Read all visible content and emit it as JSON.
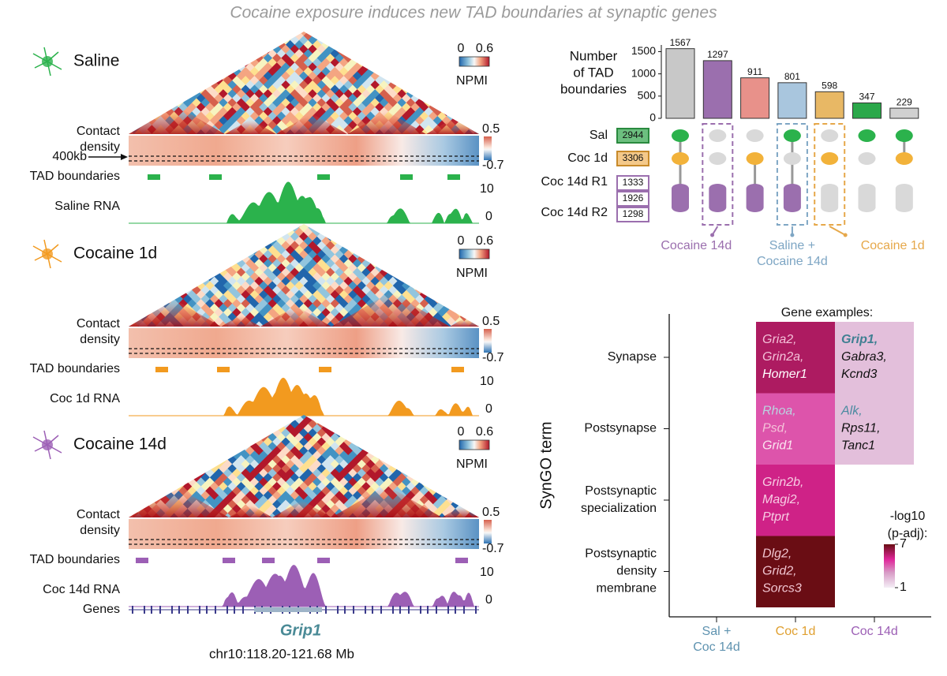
{
  "title": "Cocaine exposure induces new TAD boundaries at synaptic genes",
  "tracks": {
    "panels": [
      {
        "condition": "Saline",
        "color": "#2bb24c",
        "rna_label": "Saline RNA"
      },
      {
        "condition": "Cocaine 1d",
        "color": "#f29a1f",
        "rna_label": "Coc 1d RNA"
      },
      {
        "condition": "Cocaine 14d",
        "color": "#9c5fb5",
        "rna_label": "Coc 14d RNA"
      }
    ],
    "hic_scale": [
      0,
      0.6
    ],
    "hic_scale_label": "NPMI",
    "density_label": [
      "Contact",
      "density"
    ],
    "density_scale": [
      0.5,
      -0.7
    ],
    "distance_marker": "400kb",
    "tad_label": "TAD boundaries",
    "rna_scale": [
      10,
      0
    ],
    "genes_label": "Genes",
    "gene_name": "Grip1",
    "region": "chr10:118.20-121.68 Mb"
  },
  "chart_data": [
    {
      "type": "upset",
      "ylabel": [
        "Number",
        "of TAD",
        "boundaries"
      ],
      "values": [
        1567,
        1297,
        911,
        801,
        598,
        347,
        229
      ],
      "colors": [
        "#c8c8c8",
        "#9b6fae",
        "#e8918a",
        "#a9c6de",
        "#e8b865",
        "#2ba84a",
        "#d0d0d0"
      ],
      "ylim": [
        0,
        1650
      ],
      "yticks": [
        0,
        500,
        1000,
        1500
      ],
      "sets": [
        {
          "name": "Sal",
          "size": 2944,
          "color": "#2bb24c"
        },
        {
          "name": "Coc 1d",
          "size": 3306,
          "color": "#f2b23a"
        },
        {
          "name": "Coc 14d R1",
          "size": 1333,
          "color": "#9b6fae"
        },
        {
          "name": "Coc 14d R2",
          "size": 1298,
          "color": "#9b6fae"
        }
      ],
      "replicate_overlap": 1926,
      "membership": [
        [
          1,
          1,
          1
        ],
        [
          0,
          0,
          1
        ],
        [
          0,
          1,
          1
        ],
        [
          1,
          0,
          1
        ],
        [
          0,
          1,
          0
        ],
        [
          1,
          0,
          0
        ],
        [
          1,
          1,
          0
        ]
      ],
      "highlights": [
        null,
        [
          "Cocaine 14d"
        ],
        null,
        [
          "Saline +",
          "Cocaine 14d"
        ],
        [
          "Cocaine 1d"
        ],
        null,
        null
      ],
      "highlight_colors": [
        null,
        "#9b6fae",
        null,
        "#7ea6c4",
        "#e6a84a",
        null,
        null
      ]
    },
    {
      "type": "heatmap",
      "title": "Gene examples:",
      "ylabel": "SynGO term",
      "rows": [
        [
          "Synapse"
        ],
        [
          "Postsynapse"
        ],
        [
          "Postsynaptic",
          "specialization"
        ],
        [
          "Postsynaptic",
          "density",
          "membrane"
        ]
      ],
      "columns": [
        {
          "lines": [
            "Sal +",
            "Coc 14d"
          ],
          "color": "#5f93b0"
        },
        {
          "lines": [
            "Coc 1d"
          ],
          "color": "#e0a030"
        },
        {
          "lines": [
            "Coc 14d"
          ],
          "color": "#9c5fb5"
        }
      ],
      "values": [
        [
          null,
          5.8,
          2.2
        ],
        [
          null,
          4.2,
          2.2
        ],
        [
          null,
          5.2,
          null
        ],
        [
          null,
          7,
          null
        ]
      ],
      "genes": [
        [
          null,
          [
            {
              "text": "Gria2,",
              "color": "#f4c0d8"
            },
            {
              "text": "Grin2a,",
              "color": "#f4c0d8"
            },
            {
              "text": "Homer1",
              "color": "#ffffff"
            }
          ],
          [
            {
              "text": "Grip1,",
              "color": "#3f7f92",
              "weight": "bold"
            },
            {
              "text": "Gabra3,",
              "color": "#111111"
            },
            {
              "text": "Kcnd3",
              "color": "#111111"
            }
          ]
        ],
        [
          null,
          [
            {
              "text": "Rhoa,",
              "color": "#b9d3e0"
            },
            {
              "text": "Psd,",
              "color": "#f4c0d8"
            },
            {
              "text": "Grid1",
              "color": "#fbe4ef"
            }
          ],
          [
            {
              "text": "Alk,",
              "color": "#4a8aa0"
            },
            {
              "text": "Rps11,",
              "color": "#111111"
            },
            {
              "text": "Tanc1",
              "color": "#111111"
            }
          ]
        ],
        [
          null,
          [
            {
              "text": "Grin2b,",
              "color": "#f7cde3"
            },
            {
              "text": "Magi2,",
              "color": "#f7cde3"
            },
            {
              "text": "Ptprt",
              "color": "#f7cde3"
            }
          ],
          null
        ],
        [
          null,
          [
            {
              "text": "Dlg2,",
              "color": "#f0c4d0"
            },
            {
              "text": "Grid2,",
              "color": "#f0c4d0"
            },
            {
              "text": "Sorcs3",
              "color": "#f0c4d0"
            }
          ],
          null
        ]
      ],
      "colorbar_label": [
        "-log10",
        "(p-adj):"
      ],
      "clim": [
        1,
        7
      ],
      "cticks": [
        1,
        7
      ]
    }
  ]
}
